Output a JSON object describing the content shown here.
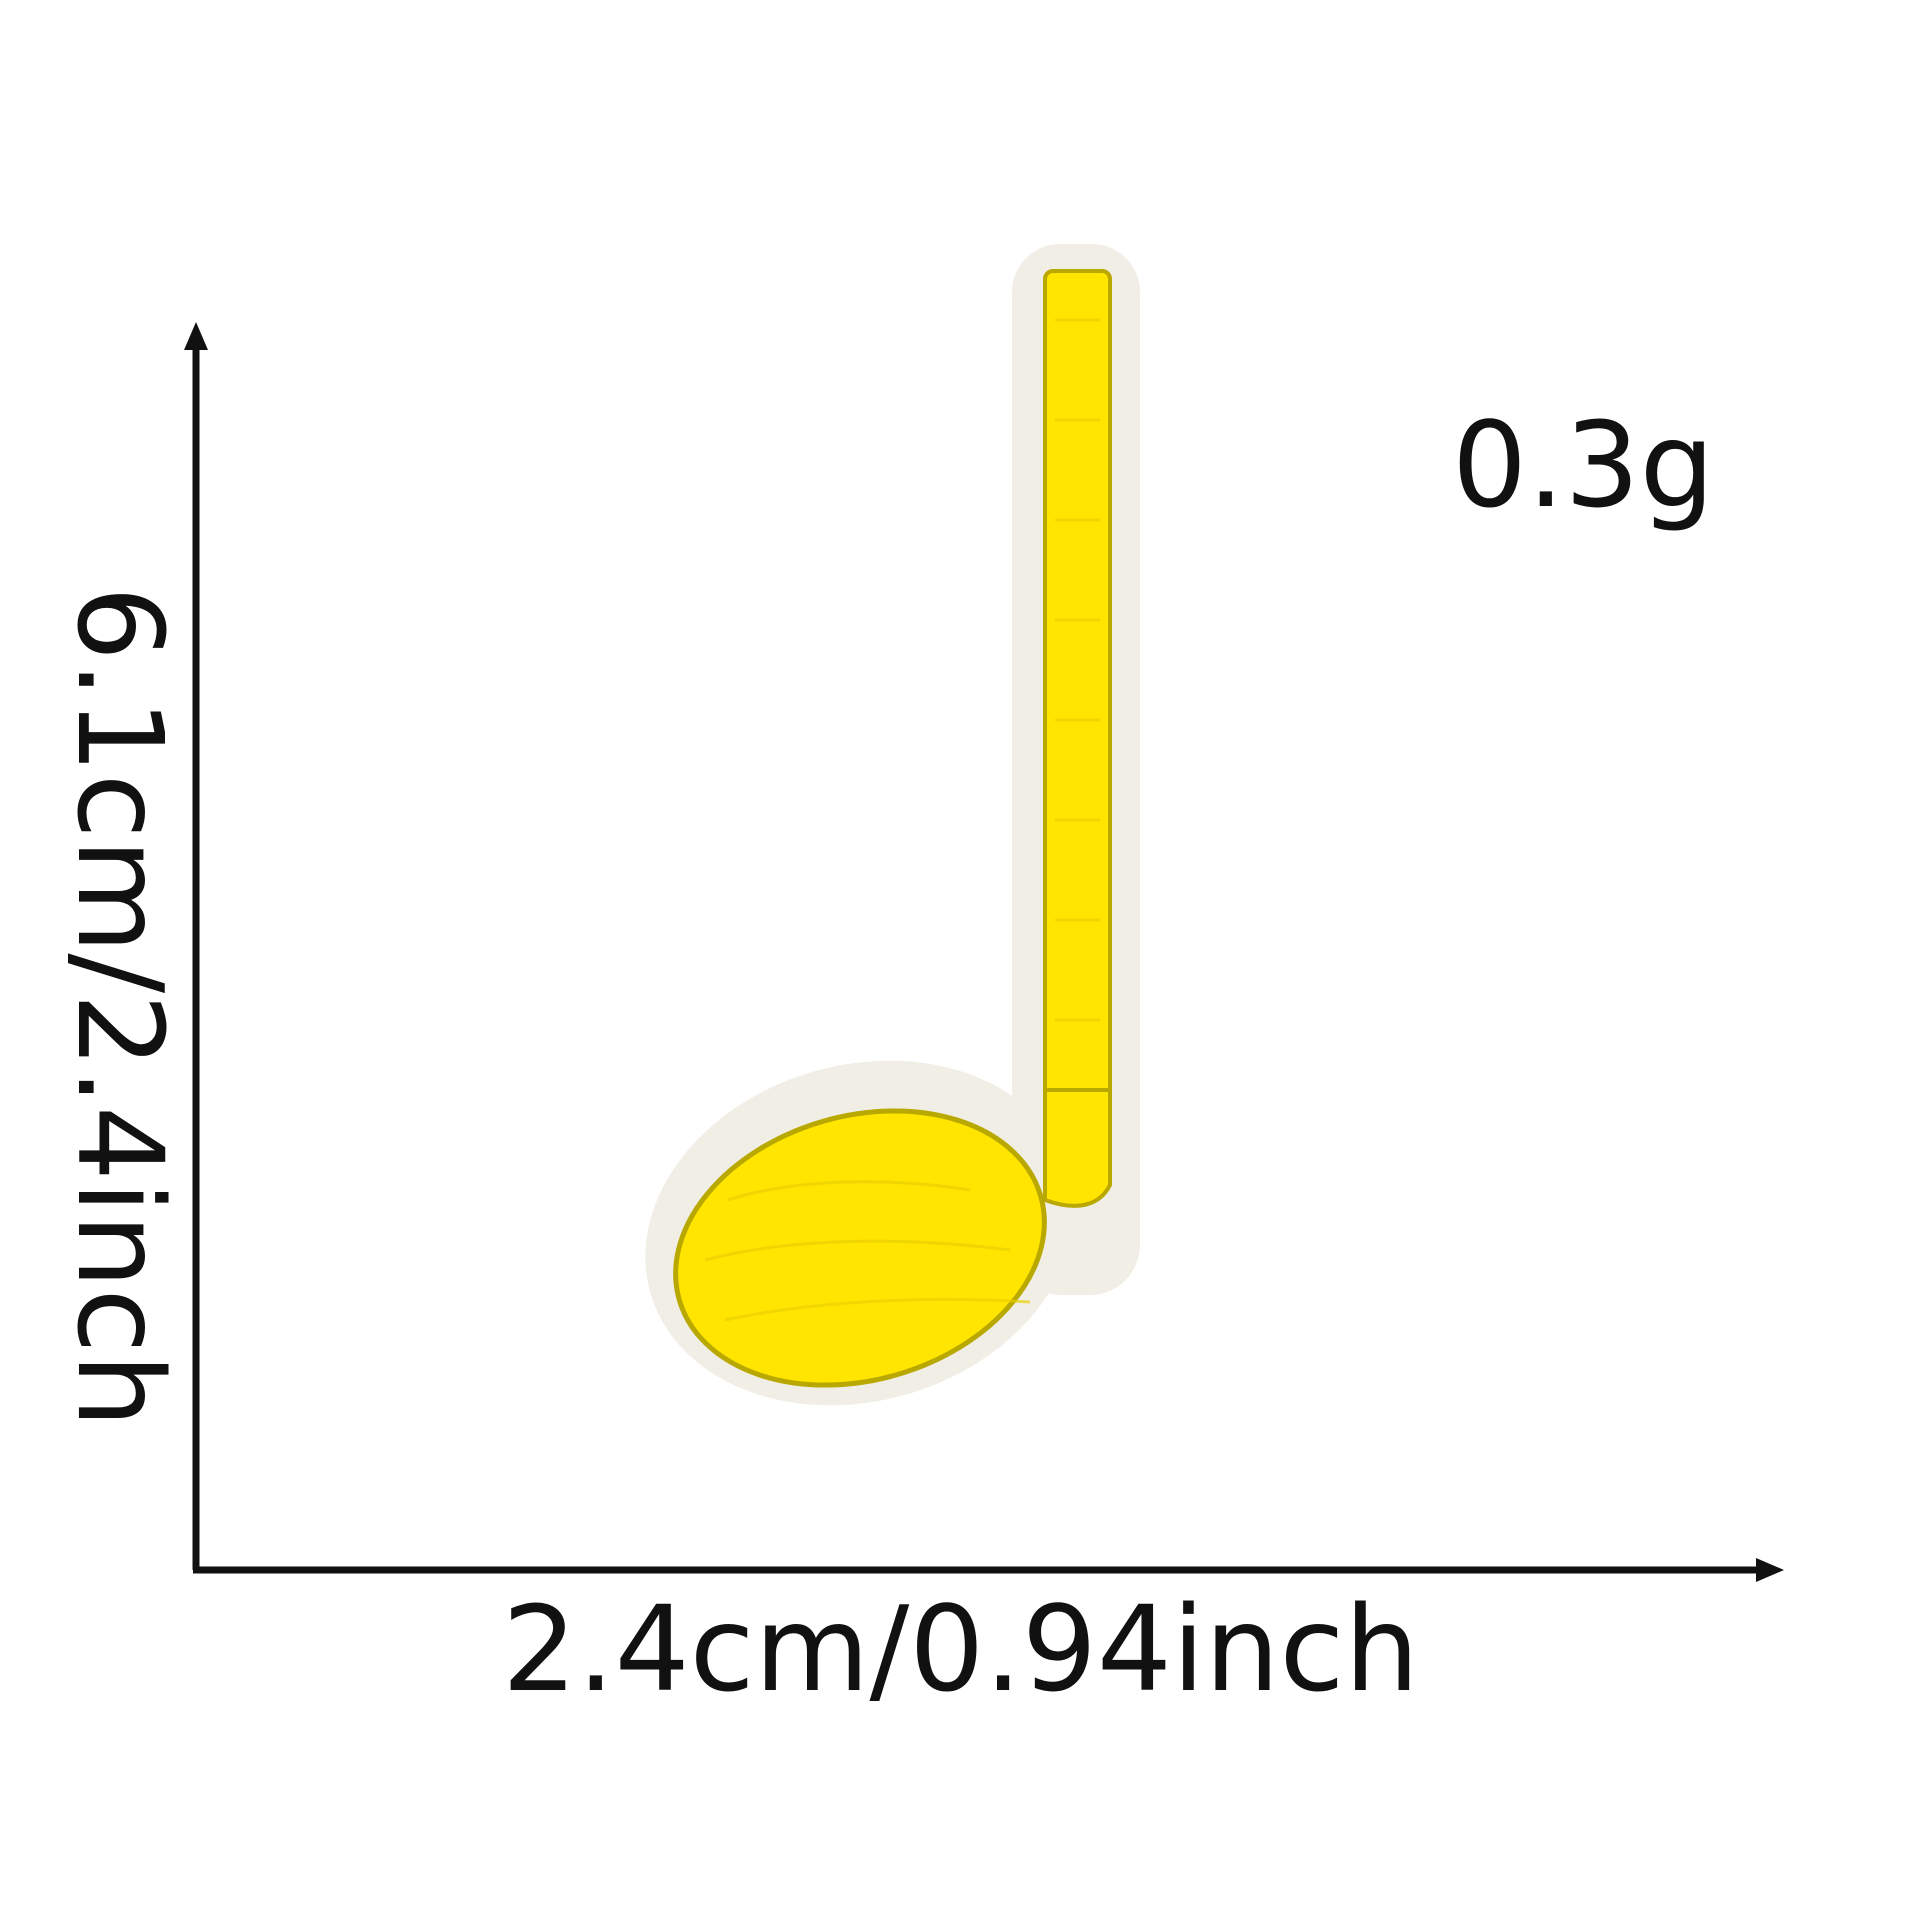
{
  "product": {
    "weight": "0.3g",
    "width_dimension": "2.4cm/0.94inch",
    "height_dimension": "6.1cm/2.4inch"
  },
  "colors": {
    "background": "#ffffff",
    "patch_fill": "#ffe500",
    "patch_border": "#f1eee6",
    "stitch_edge": "#b9a800",
    "text": "#111111",
    "arrow": "#111111"
  },
  "icons": {
    "patch": "music-note-icon",
    "vertical_arrow": "arrow-up-icon",
    "horizontal_arrow": "arrow-right-icon"
  }
}
